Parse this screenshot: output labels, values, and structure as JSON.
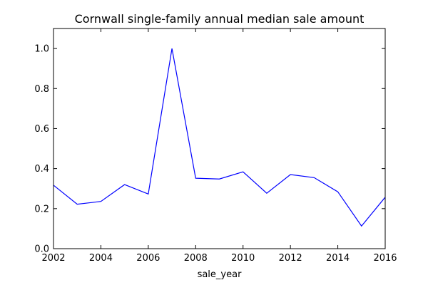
{
  "chart_data": {
    "type": "line",
    "title": "Cornwall single-family annual median sale amount",
    "xlabel": "sale_year",
    "ylabel": "",
    "xlim": [
      2002,
      2016
    ],
    "ylim": [
      0.0,
      1.1
    ],
    "x_ticks": [
      2002,
      2004,
      2006,
      2008,
      2010,
      2012,
      2014,
      2016
    ],
    "y_ticks": [
      0.0,
      0.2,
      0.4,
      0.6,
      0.8,
      1.0
    ],
    "grid": false,
    "legend": "none",
    "series": [
      {
        "color": "#0000ff",
        "x": [
          2002,
          2003,
          2004,
          2005,
          2006,
          2007,
          2008,
          2009,
          2010,
          2011,
          2012,
          2013,
          2014,
          2015,
          2016
        ],
        "values": [
          0.317,
          0.222,
          0.236,
          0.32,
          0.273,
          1.0,
          0.352,
          0.348,
          0.384,
          0.277,
          0.37,
          0.355,
          0.284,
          0.113,
          0.257
        ]
      }
    ]
  }
}
